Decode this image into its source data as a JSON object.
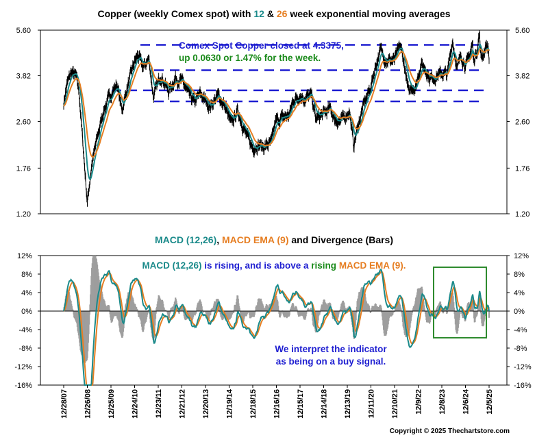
{
  "colors": {
    "price": "#000000",
    "ema12": "#1a8a8a",
    "ema26": "#e67e22",
    "macd": "#1a8a8a",
    "signal": "#e67e22",
    "histogram": "#9e9e9e",
    "level_lines": "#1f1fd1",
    "highlight_box": "#2e8b2e",
    "blue_text": "#1f1fd1",
    "green_text": "#1a8a1a"
  },
  "top_title": {
    "part1": "Copper (weekly Comex spot) with ",
    "n12": "12",
    "part2": " & ",
    "n26": "26",
    "part3": " week exponential moving averages"
  },
  "bottom_title": {
    "macd": "MACD (12,26)",
    "sep": ", ",
    "ema": "MACD EMA (9)",
    "rest": " and Divergence (Bars)"
  },
  "annotations": {
    "price_line1": "Comex Spot Copper closed at 4.3375,",
    "price_line2": "up 0.0630 or 1.47% for the week.",
    "macd_part1": "MACD (12,26)",
    "macd_part2": " is rising, and is above a ",
    "macd_part3": "rising",
    "macd_part4": " ",
    "macd_part5": "MACD EMA (9).",
    "signal_line1": "We interpret the indicator",
    "signal_line2": "as being on a buy signal."
  },
  "copyright": "Copyright © 2025 Thechartstore.com",
  "chart_data": [
    {
      "type": "line",
      "title": "Copper (weekly Comex spot) with 12 & 26 week exponential moving averages",
      "y_scale": "log",
      "ylim": [
        1.2,
        5.6
      ],
      "y_ticks": [
        "5.60",
        "3.82",
        "2.60",
        "1.76",
        "1.20"
      ],
      "x_range": [
        "2007-12-28",
        "2025-12-05"
      ],
      "x_tick_labels": [
        "12/28/07",
        "12/26/08",
        "12/25/09",
        "12/24/10",
        "12/23/11",
        "12/21/12",
        "12/20/13",
        "12/19/14",
        "12/18/15",
        "12/16/16",
        "12/15/17",
        "12/14/18",
        "12/13/19",
        "12/11/20",
        "12/10/21",
        "12/9/22",
        "12/8/23",
        "12/6/24",
        "12/5/25"
      ],
      "horizontal_levels": [
        4.95,
        4.0,
        3.38,
        3.08
      ],
      "price_anchors": [
        [
          "2007-12-28",
          3.05
        ],
        [
          "2008-02-15",
          3.55
        ],
        [
          "2008-04-25",
          3.95
        ],
        [
          "2008-07-04",
          3.8
        ],
        [
          "2008-08-22",
          3.3
        ],
        [
          "2008-10-10",
          2.3
        ],
        [
          "2008-11-21",
          1.7
        ],
        [
          "2008-12-26",
          1.32
        ],
        [
          "2009-03-01",
          1.8
        ],
        [
          "2009-06-01",
          2.3
        ],
        [
          "2009-09-01",
          2.85
        ],
        [
          "2009-12-25",
          3.3
        ],
        [
          "2010-04-01",
          3.55
        ],
        [
          "2010-06-10",
          2.85
        ],
        [
          "2010-09-01",
          3.45
        ],
        [
          "2010-12-24",
          4.3
        ],
        [
          "2011-02-14",
          4.55
        ],
        [
          "2011-05-01",
          4.1
        ],
        [
          "2011-08-01",
          4.4
        ],
        [
          "2011-10-10",
          3.2
        ],
        [
          "2012-02-01",
          3.85
        ],
        [
          "2012-06-01",
          3.35
        ],
        [
          "2012-09-15",
          3.75
        ],
        [
          "2013-01-01",
          3.62
        ],
        [
          "2013-04-15",
          3.25
        ],
        [
          "2013-07-01",
          3.05
        ],
        [
          "2013-10-01",
          3.28
        ],
        [
          "2014-03-01",
          2.95
        ],
        [
          "2014-07-01",
          3.25
        ],
        [
          "2014-10-01",
          3.0
        ],
        [
          "2015-01-20",
          2.55
        ],
        [
          "2015-05-01",
          2.85
        ],
        [
          "2015-09-01",
          2.35
        ],
        [
          "2015-12-18",
          2.08
        ],
        [
          "2016-03-01",
          2.15
        ],
        [
          "2016-06-01",
          2.1
        ],
        [
          "2016-10-01",
          2.18
        ],
        [
          "2016-12-01",
          2.6
        ],
        [
          "2017-03-01",
          2.68
        ],
        [
          "2017-07-01",
          2.75
        ],
        [
          "2017-09-01",
          3.1
        ],
        [
          "2017-12-15",
          3.25
        ],
        [
          "2018-03-01",
          3.15
        ],
        [
          "2018-06-08",
          3.25
        ],
        [
          "2018-08-15",
          2.65
        ],
        [
          "2018-12-14",
          2.78
        ],
        [
          "2019-04-01",
          2.9
        ],
        [
          "2019-06-01",
          2.65
        ],
        [
          "2019-09-01",
          2.6
        ],
        [
          "2019-12-13",
          2.78
        ],
        [
          "2020-01-15",
          2.85
        ],
        [
          "2020-03-20",
          2.12
        ],
        [
          "2020-06-01",
          2.55
        ],
        [
          "2020-09-01",
          3.05
        ],
        [
          "2020-12-11",
          3.5
        ],
        [
          "2021-02-25",
          4.2
        ],
        [
          "2021-05-10",
          4.75
        ],
        [
          "2021-08-01",
          4.35
        ],
        [
          "2021-12-10",
          4.35
        ],
        [
          "2022-03-07",
          4.95
        ],
        [
          "2022-05-01",
          4.3
        ],
        [
          "2022-07-15",
          3.3
        ],
        [
          "2022-09-01",
          3.5
        ],
        [
          "2022-11-01",
          3.45
        ],
        [
          "2022-12-09",
          3.85
        ],
        [
          "2023-01-20",
          4.2
        ],
        [
          "2023-04-01",
          4.05
        ],
        [
          "2023-06-01",
          3.75
        ],
        [
          "2023-09-01",
          3.8
        ],
        [
          "2023-12-08",
          3.9
        ],
        [
          "2024-03-01",
          3.85
        ],
        [
          "2024-05-20",
          5.15
        ],
        [
          "2024-08-01",
          4.05
        ],
        [
          "2024-10-01",
          4.55
        ],
        [
          "2024-12-06",
          4.15
        ],
        [
          "2025-01-15",
          4.35
        ],
        [
          "2025-03-26",
          5.02
        ],
        [
          "2025-04-08",
          4.3
        ],
        [
          "2025-06-01",
          4.75
        ],
        [
          "2025-07-10",
          5.5
        ],
        [
          "2025-07-31",
          4.45
        ],
        [
          "2025-09-01",
          4.55
        ],
        [
          "2025-10-03",
          4.8
        ],
        [
          "2025-11-01",
          4.95
        ],
        [
          "2025-11-21",
          4.85
        ],
        [
          "2025-12-05",
          4.3375
        ]
      ],
      "latest_close": 4.3375,
      "series": [
        {
          "name": "Copper (weekly Comex spot)"
        },
        {
          "name": "12 week exponential moving average"
        },
        {
          "name": "26 week exponential moving average"
        }
      ]
    },
    {
      "type": "line",
      "title": "MACD (12,26), MACD EMA (9) and Divergence (Bars)",
      "ylim": [
        -16,
        12
      ],
      "y_ticks": [
        "12%",
        "8%",
        "4%",
        "0%",
        "-4%",
        "-8%",
        "-12%",
        "-16%"
      ],
      "y_units": "%",
      "series": [
        {
          "name": "MACD (12,26)",
          "values": "derived from price series"
        },
        {
          "name": "MACD EMA (9)",
          "values": "derived from MACD"
        },
        {
          "name": "Divergence (Bars)",
          "type": "bar",
          "values": "MACD minus MACD EMA"
        }
      ]
    }
  ]
}
